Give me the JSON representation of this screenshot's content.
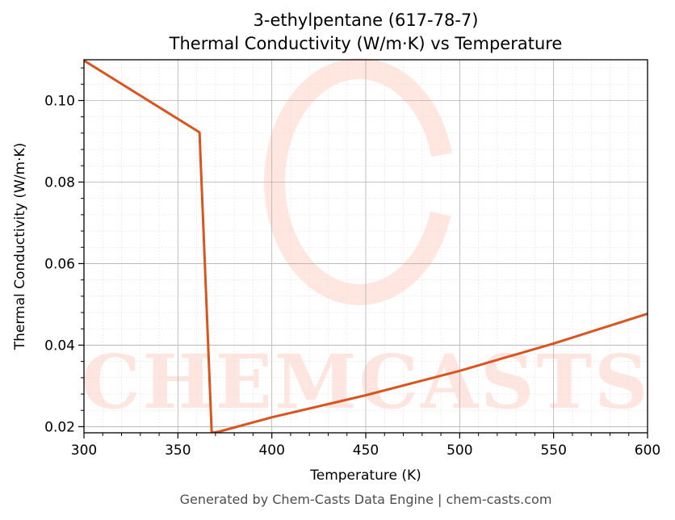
{
  "chart_data": {
    "type": "line",
    "title": "3-ethylpentane (617-78-7)",
    "subtitle": "Thermal Conductivity (W/m·K) vs Temperature",
    "xlabel": "Temperature (K)",
    "ylabel": "Thermal Conductivity (W/m·K)",
    "xlim": [
      300,
      600
    ],
    "ylim": [
      0.0185,
      0.11
    ],
    "xticks": [
      300,
      350,
      400,
      450,
      500,
      550,
      600
    ],
    "yticks": [
      0.02,
      0.04,
      0.06,
      0.08,
      0.1
    ],
    "ytick_labels": [
      "0.02",
      "0.04",
      "0.06",
      "0.08",
      "0.10"
    ],
    "grid": true,
    "minor_grid": true,
    "series": [
      {
        "color": "#d9541e",
        "x": [
          300,
          361.5,
          368,
          372,
          400,
          450,
          500,
          550,
          600
        ],
        "y": [
          0.1098,
          0.0922,
          0.0185,
          0.0188,
          0.0223,
          0.0277,
          0.0337,
          0.0404,
          0.0477
        ]
      }
    ]
  },
  "watermark": "CHEMCASTS",
  "footer": "Generated by Chem-Casts Data Engine | chem-casts.com"
}
